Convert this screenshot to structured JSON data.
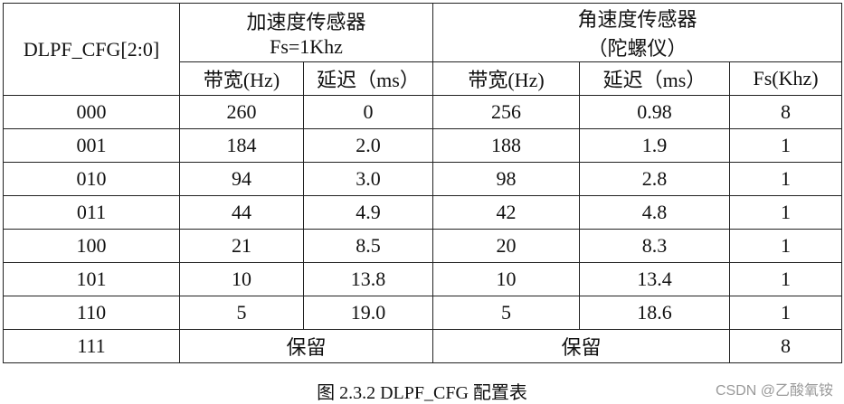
{
  "table": {
    "cfg_header": "DLPF_CFG[2:0]",
    "accel": {
      "title": "加速度传感器",
      "subtitle": "Fs=1Khz"
    },
    "gyro": {
      "title": "角速度传感器",
      "subtitle": "（陀螺仪）"
    },
    "subheaders": [
      "带宽(Hz)",
      "延迟（ms）",
      "带宽(Hz)",
      "延迟（ms）",
      "Fs(Khz)"
    ],
    "rows": [
      [
        "000",
        "260",
        "0",
        "256",
        "0.98",
        "8"
      ],
      [
        "001",
        "184",
        "2.0",
        "188",
        "1.9",
        "1"
      ],
      [
        "010",
        "94",
        "3.0",
        "98",
        "2.8",
        "1"
      ],
      [
        "011",
        "44",
        "4.9",
        "42",
        "4.8",
        "1"
      ],
      [
        "100",
        "21",
        "8.5",
        "20",
        "8.3",
        "1"
      ],
      [
        "101",
        "10",
        "13.8",
        "10",
        "13.4",
        "1"
      ],
      [
        "110",
        "5",
        "19.0",
        "5",
        "18.6",
        "1"
      ]
    ],
    "reserved_row": {
      "cfg": "111",
      "accel": "保留",
      "gyro": "保留",
      "fs": "8"
    }
  },
  "caption": "图 2.3.2 DLPF_CFG 配置表",
  "watermark": "CSDN @乙酸氧铵"
}
